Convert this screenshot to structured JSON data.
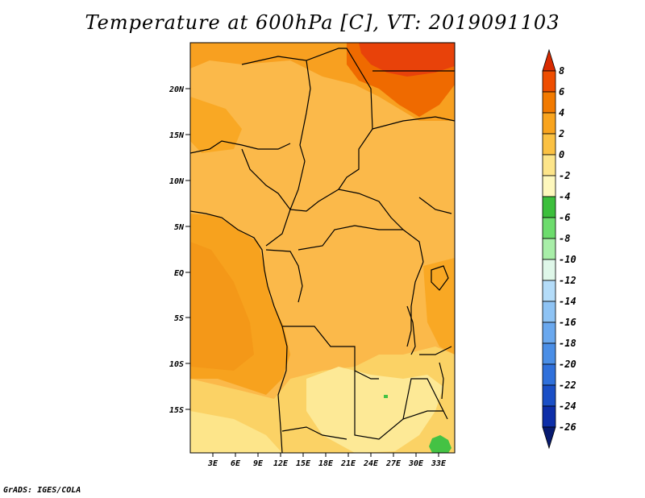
{
  "title": "Temperature at 600hPa [C], VT: 2019091103",
  "footer": "GrADS: IGES/COLA",
  "map": {
    "lat_labels": [
      "20N",
      "15N",
      "10N",
      "5N",
      "EQ",
      "5S",
      "10S",
      "15S"
    ],
    "lon_labels": [
      "3E",
      "6E",
      "9E",
      "12E",
      "15E",
      "18E",
      "21E",
      "24E",
      "27E",
      "30E",
      "33E"
    ]
  },
  "colorbar": {
    "labels": [
      "8",
      "6",
      "4",
      "2",
      "0",
      "-2",
      "-4",
      "-6",
      "-8",
      "-10",
      "-12",
      "-14",
      "-16",
      "-18",
      "-20",
      "-22",
      "-24",
      "-26"
    ],
    "colors": [
      "#d82a00",
      "#ee4d00",
      "#f27a00",
      "#f9a41e",
      "#fbc143",
      "#fde58a",
      "#fef8bd",
      "#3cbf3c",
      "#6ddc6d",
      "#a8eea8",
      "#dff7e9",
      "#b4dcf9",
      "#8ec3f4",
      "#6aa8ee",
      "#4a8ee6",
      "#2f70db",
      "#1a4fc6",
      "#0d2ea8",
      "#071a70"
    ]
  },
  "colors": {
    "ocean": "#f7a21e",
    "land_base": "#fbb94a",
    "warm_north": "#f8a020",
    "hot": "#ef4f00",
    "cool_south": "#fbd265",
    "coolest": "#fde996",
    "green": "#44c244",
    "border": "#000000"
  }
}
